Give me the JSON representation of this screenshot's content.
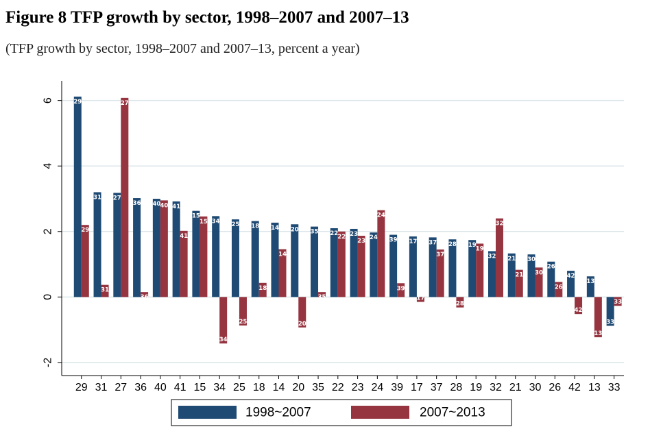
{
  "figure": {
    "title": "Figure 8 TFP growth by sector, 1998–2007 and 2007–13",
    "subtitle": "(TFP growth by sector, 1998–2007 and 2007–13, percent a year)"
  },
  "colors": {
    "series1": "#1f4a73",
    "series2": "#963440",
    "grid": "#dde6ea",
    "axis": "#000000",
    "background": "#ffffff"
  },
  "chart_data": {
    "type": "bar",
    "title": "",
    "xlabel": "",
    "ylabel": "",
    "ylim": [
      -2.4,
      6.6
    ],
    "yticks": [
      -2,
      0,
      2,
      4,
      6
    ],
    "grid": true,
    "legend": "bottom",
    "categories": [
      "29",
      "31",
      "27",
      "36",
      "40",
      "41",
      "15",
      "34",
      "25",
      "18",
      "14",
      "20",
      "35",
      "22",
      "23",
      "24",
      "39",
      "17",
      "37",
      "28",
      "19",
      "32",
      "21",
      "30",
      "26",
      "42",
      "13",
      "33"
    ],
    "series": [
      {
        "name": "1998~2007",
        "values": [
          6.12,
          3.2,
          3.18,
          3.02,
          3.0,
          2.92,
          2.63,
          2.47,
          2.37,
          2.32,
          2.27,
          2.22,
          2.15,
          2.1,
          2.08,
          1.97,
          1.9,
          1.85,
          1.82,
          1.76,
          1.74,
          1.4,
          1.33,
          1.3,
          1.08,
          0.8,
          0.63,
          -0.88
        ]
      },
      {
        "name": "2007~2013",
        "values": [
          2.2,
          0.37,
          6.08,
          0.15,
          2.95,
          2.02,
          2.46,
          -1.42,
          -0.87,
          0.43,
          1.46,
          -0.93,
          0.15,
          2.0,
          1.87,
          2.65,
          0.42,
          -0.15,
          1.45,
          -0.32,
          1.63,
          2.4,
          0.83,
          0.9,
          0.46,
          -0.52,
          -1.23,
          -0.27
        ]
      }
    ]
  }
}
